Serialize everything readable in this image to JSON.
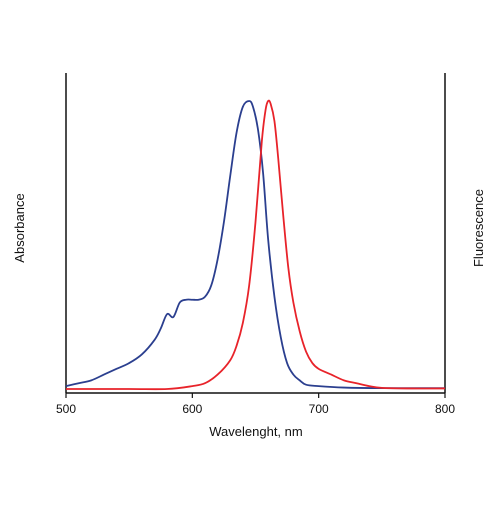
{
  "chart_data": {
    "type": "line",
    "title": "",
    "xlabel": "Wavelenght, nm",
    "ylabel_left": "Absorbance",
    "ylabel_right": "Fluorescence",
    "xlim": [
      500,
      800
    ],
    "ylim": [
      0,
      1
    ],
    "x_ticks": [
      500,
      600,
      700,
      800
    ],
    "y_ticks": "none",
    "grid": false,
    "legend": "none",
    "colors": {
      "absorbance": "#2b3f8f",
      "fluorescence": "#e8232a",
      "axis": "#111111"
    },
    "series": [
      {
        "key": "absorbance",
        "axis": "left",
        "x": [
          500,
          510,
          520,
          530,
          540,
          550,
          560,
          570,
          575,
          580,
          585,
          590,
          595,
          600,
          605,
          610,
          615,
          620,
          625,
          630,
          635,
          640,
          645,
          648,
          652,
          656,
          660,
          665,
          670,
          675,
          680,
          685,
          690,
          700,
          720,
          750,
          800
        ],
        "values": [
          0.01,
          0.02,
          0.03,
          0.05,
          0.07,
          0.09,
          0.12,
          0.17,
          0.21,
          0.26,
          0.25,
          0.3,
          0.31,
          0.31,
          0.31,
          0.32,
          0.36,
          0.45,
          0.58,
          0.74,
          0.89,
          0.98,
          1.0,
          0.98,
          0.9,
          0.75,
          0.52,
          0.32,
          0.18,
          0.09,
          0.05,
          0.03,
          0.015,
          0.01,
          0.005,
          0.003,
          0.003
        ]
      },
      {
        "key": "fluorescence",
        "axis": "right",
        "x": [
          500,
          550,
          580,
          600,
          610,
          620,
          630,
          635,
          640,
          645,
          650,
          655,
          658,
          660,
          662,
          665,
          668,
          672,
          676,
          680,
          685,
          690,
          695,
          700,
          710,
          720,
          730,
          740,
          750,
          770,
          800
        ],
        "values": [
          0.0,
          0.0,
          0.0,
          0.01,
          0.02,
          0.05,
          0.1,
          0.15,
          0.23,
          0.36,
          0.58,
          0.86,
          0.97,
          1.0,
          0.99,
          0.93,
          0.8,
          0.6,
          0.42,
          0.3,
          0.2,
          0.13,
          0.09,
          0.07,
          0.05,
          0.03,
          0.02,
          0.01,
          0.004,
          0.002,
          0.002
        ]
      }
    ]
  }
}
